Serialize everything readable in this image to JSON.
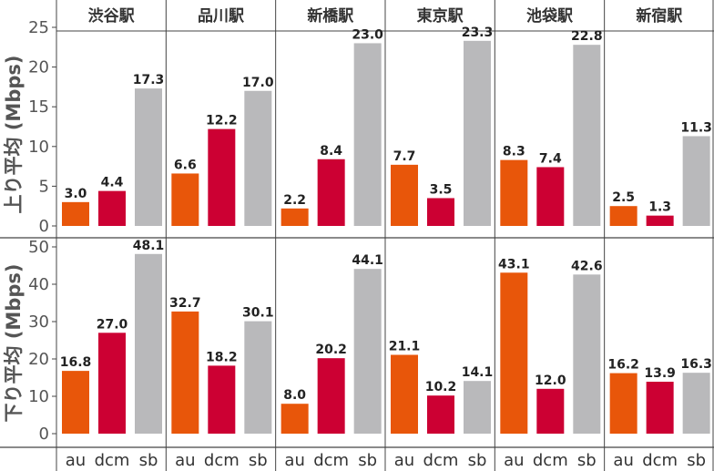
{
  "chart_data": {
    "type": "bar",
    "stations": [
      "渋谷駅",
      "品川駅",
      "新橋駅",
      "東京駅",
      "池袋駅",
      "新宿駅"
    ],
    "carriers": [
      "au",
      "dcm",
      "sb"
    ],
    "colors": {
      "au": "#E8560A",
      "dcm": "#CC0033",
      "sb": "#B9B9BB"
    },
    "panels": [
      {
        "name": "upload",
        "ylabel": "上り平均 (Mbps)",
        "ylim": [
          0,
          26
        ],
        "yticks": [
          0,
          5,
          10,
          15,
          20,
          25
        ],
        "series": [
          {
            "name": "au",
            "values": [
              3.0,
              6.6,
              2.2,
              7.7,
              8.3,
              2.5
            ]
          },
          {
            "name": "dcm",
            "values": [
              4.4,
              12.2,
              8.4,
              3.5,
              7.4,
              1.3
            ]
          },
          {
            "name": "sb",
            "values": [
              17.3,
              17.0,
              23.0,
              23.3,
              22.8,
              11.3
            ]
          }
        ]
      },
      {
        "name": "download",
        "ylabel": "下り平均 (Mbps)",
        "ylim": [
          0,
          53
        ],
        "yticks": [
          0,
          10,
          20,
          30,
          40,
          50
        ],
        "series": [
          {
            "name": "au",
            "values": [
              16.8,
              32.7,
              8.0,
              21.1,
              43.1,
              16.2
            ]
          },
          {
            "name": "dcm",
            "values": [
              27.0,
              18.2,
              20.2,
              10.2,
              12.0,
              13.9
            ]
          },
          {
            "name": "sb",
            "values": [
              48.1,
              30.1,
              44.1,
              14.1,
              42.6,
              16.3
            ]
          }
        ]
      }
    ]
  }
}
